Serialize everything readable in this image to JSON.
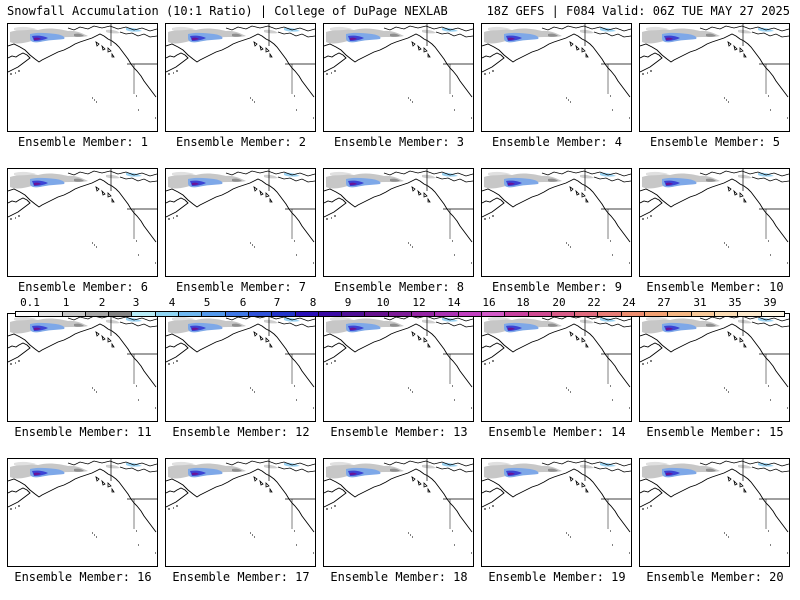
{
  "header": {
    "title": "Snowfall Accumulation (10:1 Ratio) | College of DuPage NEXLAB",
    "run_info": "18Z GEFS | F084 Valid: 06Z TUE MAY 27 2025"
  },
  "members": [
    {
      "label": "Ensemble Member: 1"
    },
    {
      "label": "Ensemble Member: 2"
    },
    {
      "label": "Ensemble Member: 3"
    },
    {
      "label": "Ensemble Member: 4"
    },
    {
      "label": "Ensemble Member: 5"
    },
    {
      "label": "Ensemble Member: 6"
    },
    {
      "label": "Ensemble Member: 7"
    },
    {
      "label": "Ensemble Member: 8"
    },
    {
      "label": "Ensemble Member: 9"
    },
    {
      "label": "Ensemble Member: 10"
    },
    {
      "label": "Ensemble Member: 11"
    },
    {
      "label": "Ensemble Member: 12"
    },
    {
      "label": "Ensemble Member: 13"
    },
    {
      "label": "Ensemble Member: 14"
    },
    {
      "label": "Ensemble Member: 15"
    },
    {
      "label": "Ensemble Member: 16"
    },
    {
      "label": "Ensemble Member: 17"
    },
    {
      "label": "Ensemble Member: 18"
    },
    {
      "label": "Ensemble Member: 19"
    },
    {
      "label": "Ensemble Member: 20"
    }
  ],
  "colorbar": {
    "ticks": [
      "0.1",
      "1",
      "2",
      "3",
      "4",
      "5",
      "6",
      "7",
      "8",
      "9",
      "10",
      "12",
      "14",
      "16",
      "18",
      "20",
      "22",
      "24",
      "27",
      "31",
      "35",
      "39"
    ],
    "colors": [
      "#ffffff",
      "#e4e4e4",
      "#c6c6c6",
      "#a4a4a4",
      "#828282",
      "#b7ecf7",
      "#8fd5f3",
      "#6eb7f0",
      "#5399ec",
      "#3f78e6",
      "#2f52d8",
      "#2233c9",
      "#2a10b8",
      "#3a0aa4",
      "#4f0f96",
      "#67128f",
      "#7e1b98",
      "#9524a4",
      "#ab32b3",
      "#c23fc0",
      "#d35ac8",
      "#c8419f",
      "#d04a92",
      "#d85b88",
      "#e06b7e",
      "#e87c76",
      "#ee8e70",
      "#f2a173",
      "#f5b683",
      "#f8c99a",
      "#fbdcb4",
      "#fde9cc",
      "#fff7e6"
    ]
  }
}
